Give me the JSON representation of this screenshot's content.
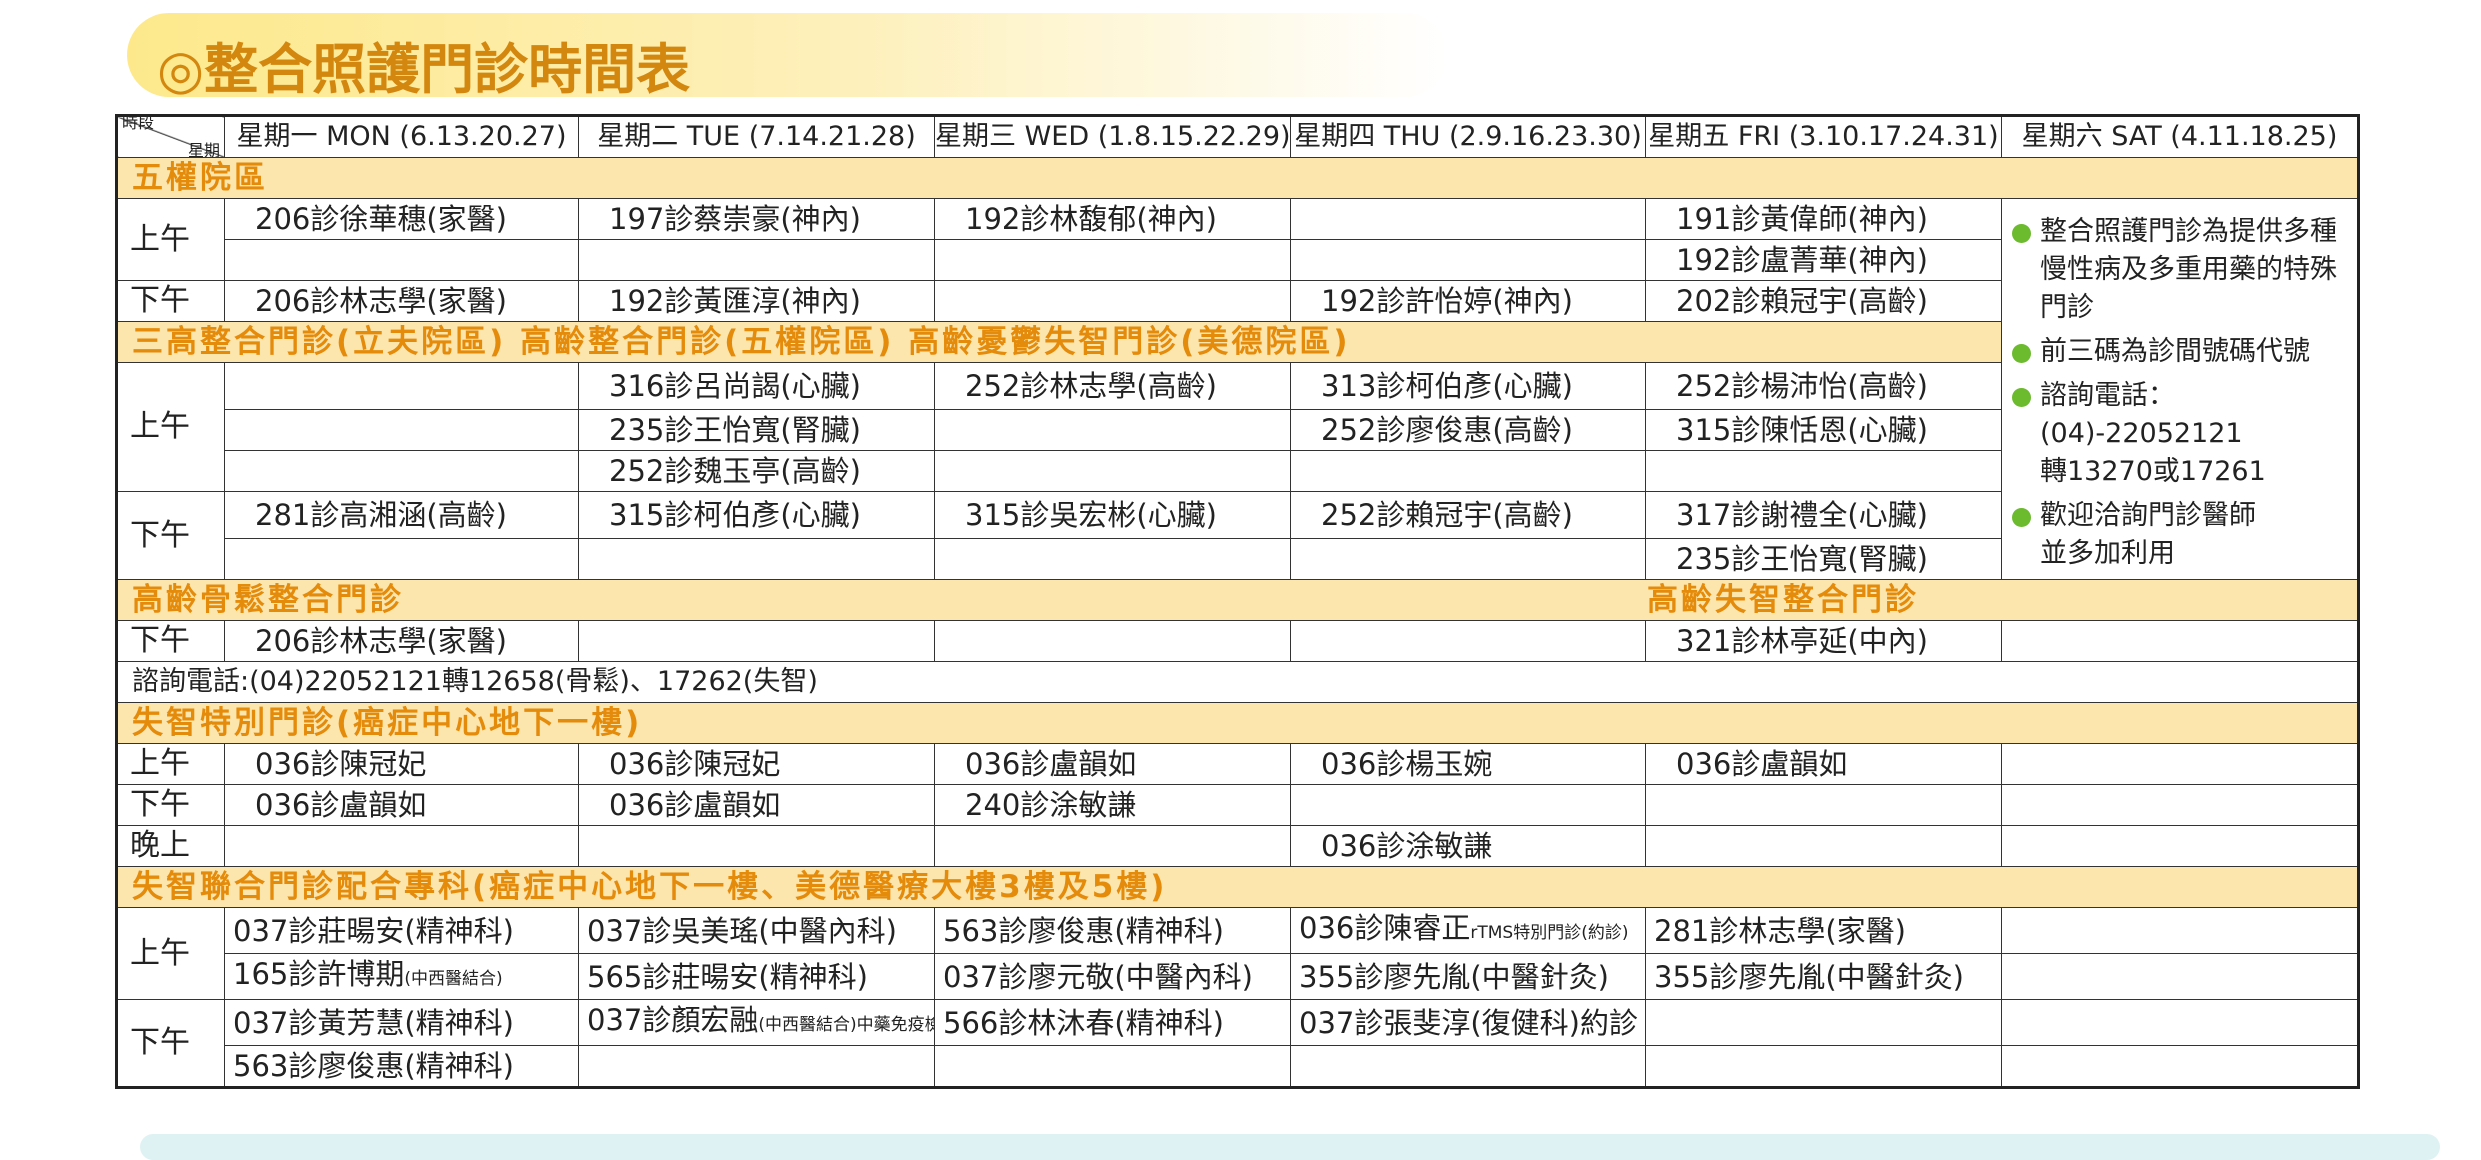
{
  "title": "◎整合照護門診時間表",
  "header": {
    "corner_top": "時段",
    "corner_bottom": "星期",
    "days": [
      "星期一 MON (6.13.20.27)",
      "星期二 TUE (7.14.21.28)",
      "星期三 WED (1.8.15.22.29)",
      "星期四 THU (2.9.16.23.30)",
      "星期五 FRI (3.10.17.24.31)",
      "星期六 SAT (4.11.18.25)"
    ]
  },
  "sections": [
    {
      "title": "五權院區",
      "groups": [
        {
          "period": "上午",
          "lines": [
            [
              "206診徐華穗(家醫)",
              "197診蔡崇豪(神內)",
              "192診林馥郁(神內)",
              null,
              "191診黃偉師(神內)"
            ],
            [
              null,
              null,
              null,
              null,
              "192診盧菁華(神內)"
            ]
          ]
        },
        {
          "period": "下午",
          "lines": [
            [
              "206診林志學(家醫)",
              "192診黃匯淳(神內)",
              null,
              "192診許怡婷(神內)",
              "202診賴冠宇(高齡)"
            ]
          ]
        }
      ]
    },
    {
      "title": "三高整合門診(立夫院區) 高齡整合門診(五權院區) 高齡憂鬱失智門診(美德院區)",
      "groups": [
        {
          "period": "上午",
          "lines": [
            [
              null,
              "316診呂尚謁(心臟)",
              "252診林志學(高齡)",
              "313診柯伯彥(心臟)",
              "252診楊沛怡(高齡)"
            ],
            [
              null,
              "235診王怡寬(腎臟)",
              null,
              "252診廖俊惠(高齡)",
              "315診陳恬恩(心臟)"
            ],
            [
              null,
              "252診魏玉亭(高齡)",
              null,
              null,
              null
            ]
          ]
        },
        {
          "period": "下午",
          "lines": [
            [
              "281診高湘涵(高齡)",
              "315診柯伯彥(心臟)",
              "315診吳宏彬(心臟)",
              "252診賴冠宇(高齡)",
              "317診謝禮全(心臟)"
            ],
            [
              null,
              null,
              null,
              null,
              "235診王怡寬(腎臟)"
            ]
          ]
        }
      ]
    },
    {
      "title": "高齡骨鬆整合門診",
      "title_right": "高齡失智整合門診",
      "groups": [
        {
          "period": "下午",
          "lines": [
            [
              "206診林志學(家醫)",
              null,
              null,
              null,
              "321診林亭延(中內)",
              null
            ]
          ]
        }
      ],
      "footnote": "諮詢電話:(04)22052121轉12658(骨鬆)、17262(失智)"
    },
    {
      "title": "失智特別門診(癌症中心地下一樓)",
      "groups": [
        {
          "period": "上午",
          "lines": [
            [
              "036診陳冠妃",
              "036診陳冠妃",
              "036診盧韻如",
              "036診楊玉婉",
              "036診盧韻如",
              null
            ]
          ]
        },
        {
          "period": "下午",
          "lines": [
            [
              "036診盧韻如",
              "036診盧韻如",
              "240診涂敏謙",
              null,
              null,
              null
            ]
          ]
        },
        {
          "period": "晚上",
          "lines": [
            [
              null,
              null,
              null,
              "036診涂敏謙",
              null,
              null
            ]
          ]
        }
      ]
    },
    {
      "title": "失智聯合門診配合專科(癌症中心地下一樓、美德醫療大樓3樓及5樓)",
      "groups": [
        {
          "period": "上午",
          "lines": [
            [
              "037診莊暘安(精神科)",
              "037診吳美瑤(中醫內科)",
              "563診廖俊惠(精神科)",
              {
                "main": "036診陳睿正",
                "small": "rTMS特別門診(約診)"
              },
              "281診林志學(家醫)",
              null
            ],
            [
              {
                "main": "165診許博期",
                "small": "(中西醫結合)"
              },
              "565診莊暘安(精神科)",
              "037診廖元敬(中醫內科)",
              "355診廖先胤(中醫針灸)",
              "355診廖先胤(中醫針灸)",
              null
            ]
          ]
        },
        {
          "period": "下午",
          "lines": [
            [
              "037診黃芳慧(精神科)",
              {
                "main": "037診顏宏融",
                "small": "(中西醫結合)中藥免疫檢查"
              },
              "566診林沐春(精神科)",
              "037診張斐淳(復健科)約診",
              null,
              null
            ],
            [
              "563診廖俊惠(精神科)",
              null,
              null,
              null,
              null,
              null
            ]
          ]
        }
      ]
    }
  ],
  "notes": [
    [
      "整合照護門診為提供多種",
      "慢性病及多重用藥的特殊",
      "門診"
    ],
    [
      "前三碼為診間號碼代號"
    ],
    [
      "諮詢電話：",
      "(04)-22052121",
      "轉13270或17261"
    ],
    [
      "歡迎洽詢門診醫師",
      "並多加利用"
    ]
  ]
}
